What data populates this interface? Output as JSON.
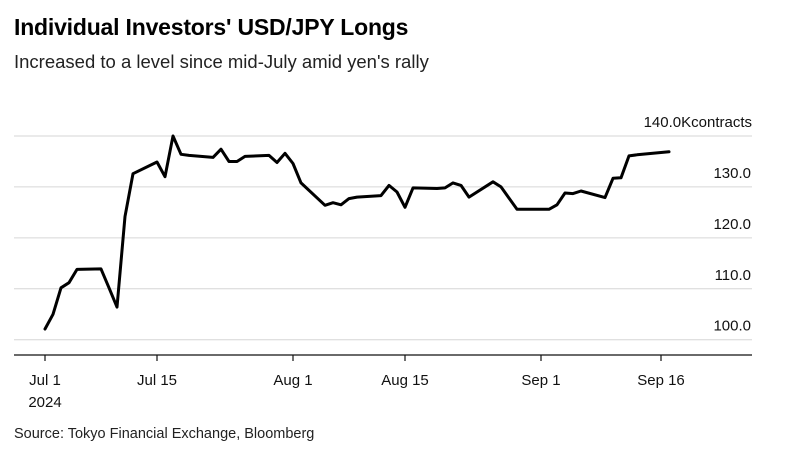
{
  "header": {
    "title": "Individual Investors' USD/JPY Longs",
    "subtitle": "Increased to a level since mid-July amid yen's rally"
  },
  "footer": {
    "source": "Source: Tokyo Financial Exchange, Bloomberg"
  },
  "chart_data": {
    "type": "line",
    "title": "Individual Investors' USD/JPY Longs",
    "subtitle": "Increased to a level since mid-July amid yen's rally",
    "unit": "contracts",
    "y_unit_label": "Kcontracts",
    "ylim": [
      97,
      140
    ],
    "y_ticks": [
      100,
      110,
      120,
      130,
      140
    ],
    "y_tick_labels": [
      "100.0",
      "110.0",
      "120.0",
      "130.0",
      "140.0"
    ],
    "x_ticks": [
      "2024-07-01",
      "2024-07-15",
      "2024-08-01",
      "2024-08-15",
      "2024-09-01",
      "2024-09-16"
    ],
    "x_tick_labels": [
      "Jul 1",
      "Jul 15",
      "Aug 1",
      "Aug 15",
      "Sep 1",
      "Sep 16"
    ],
    "x_tick_sublabel": "2024",
    "grid": true,
    "line_color": "#000000",
    "series": [
      {
        "name": "",
        "x": [
          "2024-07-01",
          "2024-07-02",
          "2024-07-03",
          "2024-07-04",
          "2024-07-05",
          "2024-07-08",
          "2024-07-09",
          "2024-07-10",
          "2024-07-11",
          "2024-07-12",
          "2024-07-15",
          "2024-07-16",
          "2024-07-17",
          "2024-07-18",
          "2024-07-19",
          "2024-07-22",
          "2024-07-23",
          "2024-07-24",
          "2024-07-25",
          "2024-07-26",
          "2024-07-29",
          "2024-07-30",
          "2024-07-31",
          "2024-08-01",
          "2024-08-02",
          "2024-08-05",
          "2024-08-06",
          "2024-08-07",
          "2024-08-08",
          "2024-08-09",
          "2024-08-12",
          "2024-08-13",
          "2024-08-14",
          "2024-08-15",
          "2024-08-16",
          "2024-08-19",
          "2024-08-20",
          "2024-08-21",
          "2024-08-22",
          "2024-08-23",
          "2024-08-26",
          "2024-08-27",
          "2024-08-28",
          "2024-08-29",
          "2024-08-30",
          "2024-09-02",
          "2024-09-03",
          "2024-09-04",
          "2024-09-05",
          "2024-09-06",
          "2024-09-09",
          "2024-09-10",
          "2024-09-11",
          "2024-09-12",
          "2024-09-13",
          "2024-09-17"
        ],
        "y": [
          102.1,
          105.0,
          110.2,
          111.2,
          113.8,
          113.9,
          110.2,
          106.4,
          124.2,
          132.6,
          134.9,
          132.0,
          140.0,
          136.4,
          136.2,
          135.8,
          137.4,
          135.0,
          135.0,
          136.0,
          136.2,
          134.8,
          136.6,
          134.6,
          130.8,
          126.4,
          126.9,
          126.5,
          127.7,
          128.0,
          128.3,
          130.3,
          129.0,
          126.0,
          129.8,
          129.7,
          129.8,
          130.8,
          130.3,
          128.0,
          131.0,
          130.0,
          127.8,
          125.6,
          125.6,
          125.6,
          126.5,
          128.8,
          128.7,
          129.2,
          127.9,
          131.7,
          131.8,
          136.1,
          136.3,
          136.9
        ]
      }
    ]
  }
}
